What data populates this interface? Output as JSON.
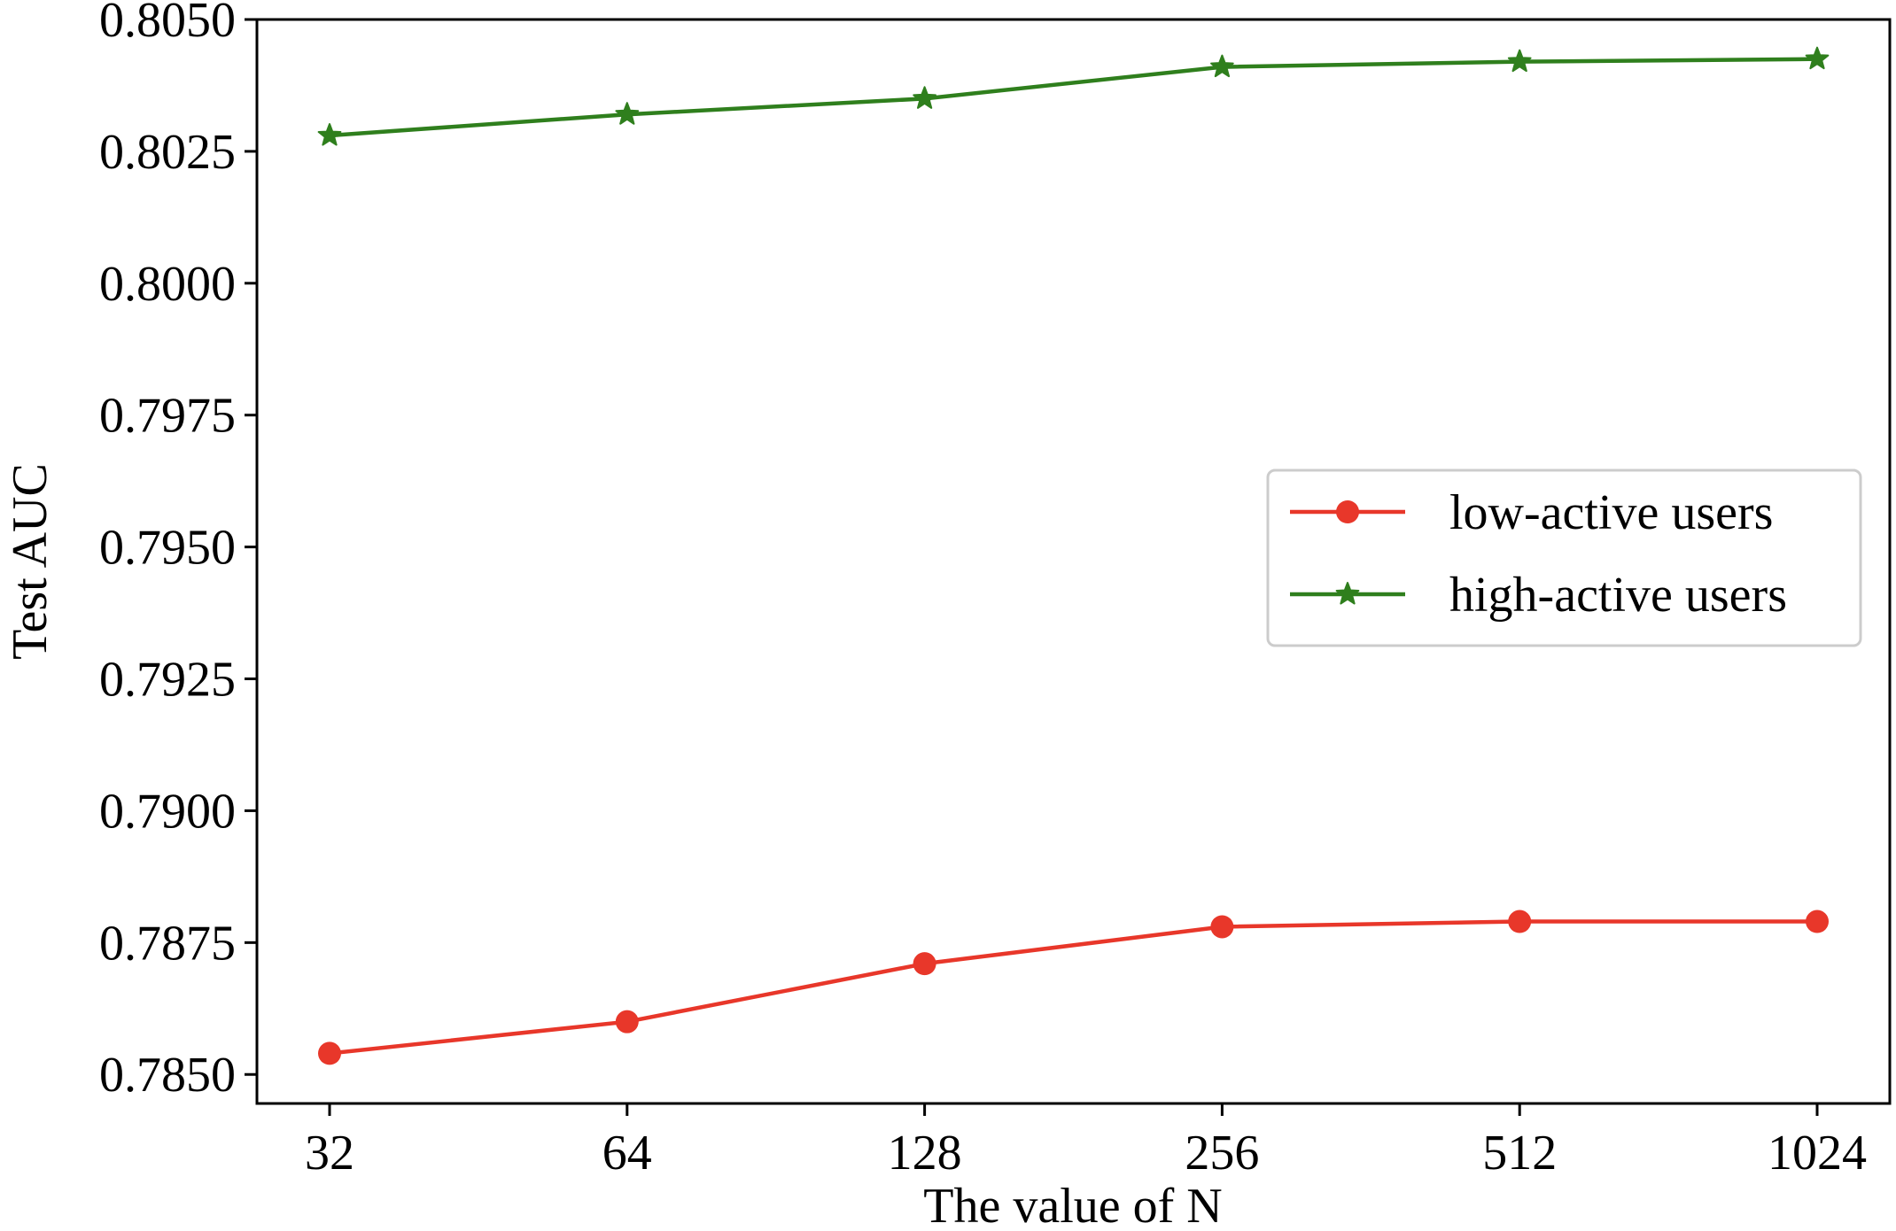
{
  "chart_data": {
    "type": "line",
    "title": "",
    "xlabel": "The value of N",
    "ylabel": "Test AUC",
    "categories": [
      "32",
      "64",
      "128",
      "256",
      "512",
      "1024"
    ],
    "ylim": [
      0.78445,
      0.805
    ],
    "yticks": [
      "0.7850",
      "0.7875",
      "0.7900",
      "0.7925",
      "0.7950",
      "0.7975",
      "0.8000",
      "0.8025",
      "0.8050"
    ],
    "ytick_values": [
      0.785,
      0.7875,
      0.79,
      0.7925,
      0.795,
      0.7975,
      0.8,
      0.8025,
      0.805
    ],
    "legend_position": "center-right",
    "grid": false,
    "series": [
      {
        "name": "low-active users",
        "color": "#e8372a",
        "marker": "circle",
        "values": [
          0.7854,
          0.786,
          0.7871,
          0.7878,
          0.7879,
          0.7879
        ]
      },
      {
        "name": "high-active users",
        "color": "#2f7f1d",
        "marker": "star",
        "values": [
          0.8028,
          0.8032,
          0.8035,
          0.8041,
          0.8042,
          0.80425
        ]
      }
    ]
  }
}
